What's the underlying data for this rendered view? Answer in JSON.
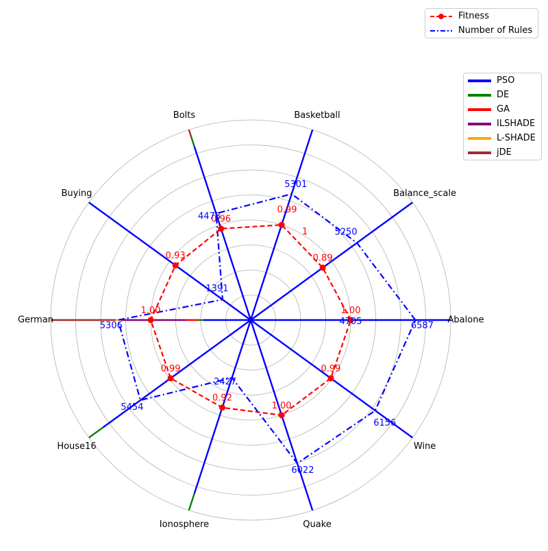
{
  "chart_data": {
    "type": "radar",
    "categories": [
      "Abalone",
      "Balance_scale",
      "Basketball",
      "Bolts",
      "Buying",
      "German",
      "House16",
      "Ionosphere",
      "Quake",
      "Wine"
    ],
    "rmax": 8000,
    "grid_rings": [
      1000,
      2000,
      3000,
      4000,
      5000,
      6000,
      7000,
      8000
    ],
    "grid": true,
    "series": [
      {
        "name": "Fitness",
        "style": "dashed-with-markers",
        "color": "#ff0000",
        "values": [
          1.0,
          0.89,
          1,
          0.96,
          0.93,
          1.0,
          0.99,
          0.92,
          1.0,
          0.99
        ],
        "labels": [
          "1.00",
          "0.89",
          "1",
          "0.96",
          "0.93",
          "1.00",
          "0.99",
          "0.92",
          "1.00",
          "0.99"
        ],
        "extra_label": "0.99"
      },
      {
        "name": "Number of Rules",
        "style": "dashdot",
        "color": "#0000ff",
        "values": [
          6587,
          5250,
          5301,
          4478,
          1391,
          5306,
          5454,
          2427,
          6022,
          6156
        ],
        "labels": [
          "6587",
          "5250",
          "5301",
          "4478",
          "1391",
          "5306",
          "5454",
          "2427",
          "6022",
          "6156"
        ],
        "extra_label": "4705"
      }
    ],
    "algorithms": [
      {
        "name": "PSO",
        "color": "#0000ff"
      },
      {
        "name": "DE",
        "color": "#008000"
      },
      {
        "name": "GA",
        "color": "#ff0000"
      },
      {
        "name": "ILSHADE",
        "color": "#800080"
      },
      {
        "name": "L-SHADE",
        "color": "#ffa500"
      },
      {
        "name": "jDE",
        "color": "#a52a2a"
      }
    ],
    "algorithm_spokes": [
      {
        "category": "Abalone",
        "segments": [
          [
            "PSO",
            8000
          ]
        ]
      },
      {
        "category": "Balance_scale",
        "segments": [
          [
            "PSO",
            8000
          ]
        ]
      },
      {
        "category": "Basketball",
        "segments": [
          [
            "PSO",
            8000
          ]
        ]
      },
      {
        "category": "Bolts",
        "segments": [
          [
            "PSO",
            7300
          ],
          [
            "DE",
            7700
          ],
          [
            "jDE",
            8000
          ]
        ]
      },
      {
        "category": "Buying",
        "segments": [
          [
            "PSO",
            8000
          ]
        ]
      },
      {
        "category": "German",
        "segments": [
          [
            "PSO",
            1900
          ],
          [
            "DE",
            2100
          ],
          [
            "GA",
            2600
          ],
          [
            "ILSHADE",
            5200
          ],
          [
            "L-SHADE",
            5400
          ],
          [
            "jDE",
            8000
          ]
        ]
      },
      {
        "category": "House16",
        "segments": [
          [
            "PSO",
            7300
          ],
          [
            "DE",
            8000
          ]
        ]
      },
      {
        "category": "Ionosphere",
        "segments": [
          [
            "PSO",
            7300
          ],
          [
            "DE",
            8000
          ]
        ]
      },
      {
        "category": "Quake",
        "segments": [
          [
            "PSO",
            8000
          ]
        ]
      },
      {
        "category": "Wine",
        "segments": [
          [
            "PSO",
            8000
          ]
        ]
      }
    ],
    "legend_placement": "top-right"
  }
}
